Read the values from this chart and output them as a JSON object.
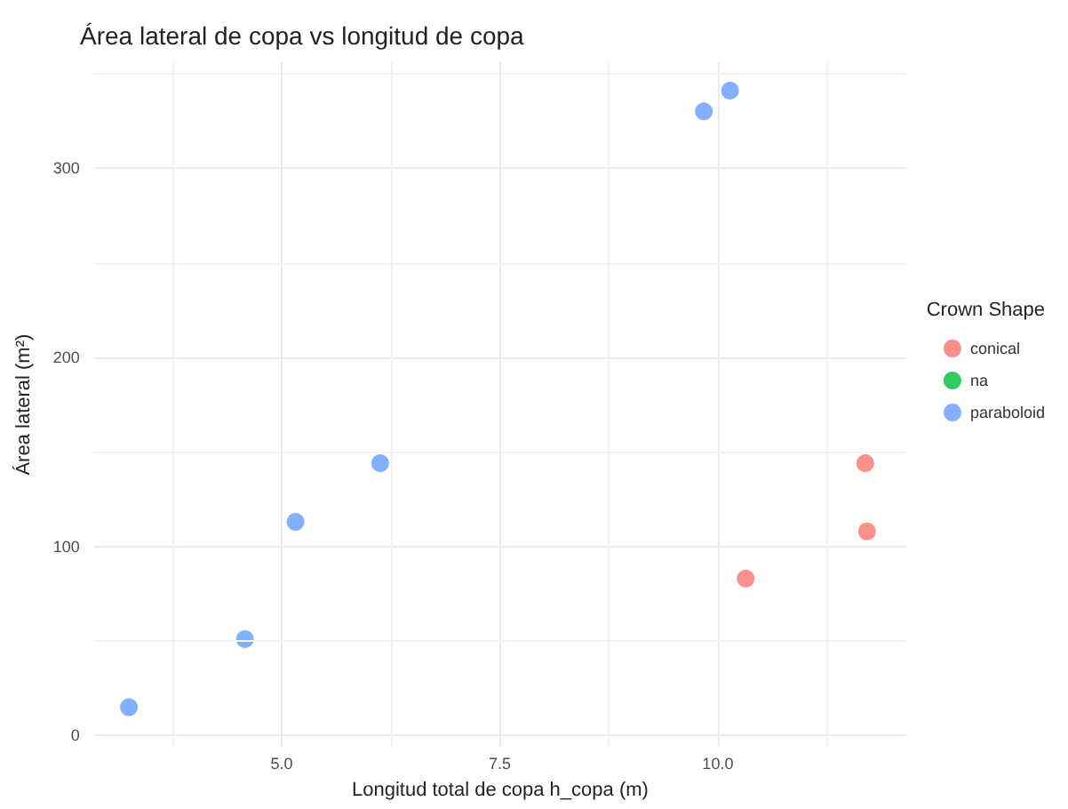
{
  "chart_data": {
    "type": "scatter",
    "title": "Área lateral de copa vs longitud de copa",
    "xlabel": "Longitud total de copa h_copa (m)",
    "ylabel": "Área lateral (m²)",
    "legend_title": "Crown Shape",
    "series": [
      {
        "name": "conical",
        "color": "#f8766d",
        "x": [
          10.32,
          11.69,
          11.71
        ],
        "values": [
          83,
          144,
          108
        ]
      },
      {
        "name": "na",
        "color": "#00ba38"
      },
      {
        "name": "paraboloid",
        "color": "#619cff",
        "x": [
          3.25,
          4.58,
          5.16,
          6.13,
          9.84,
          10.14
        ],
        "values": [
          15,
          51,
          113,
          144,
          330,
          341
        ]
      }
    ],
    "xlim": [
      2.85,
      12.16
    ],
    "ylim": [
      -6,
      356
    ],
    "xticks": [
      {
        "value": 5,
        "label": "5.0"
      },
      {
        "value": 7.5,
        "label": "7.5"
      },
      {
        "value": 10,
        "label": "10.0"
      }
    ],
    "yticks": [
      0,
      100,
      200,
      300
    ],
    "grid": true,
    "legend": "right",
    "marker": "circle"
  }
}
